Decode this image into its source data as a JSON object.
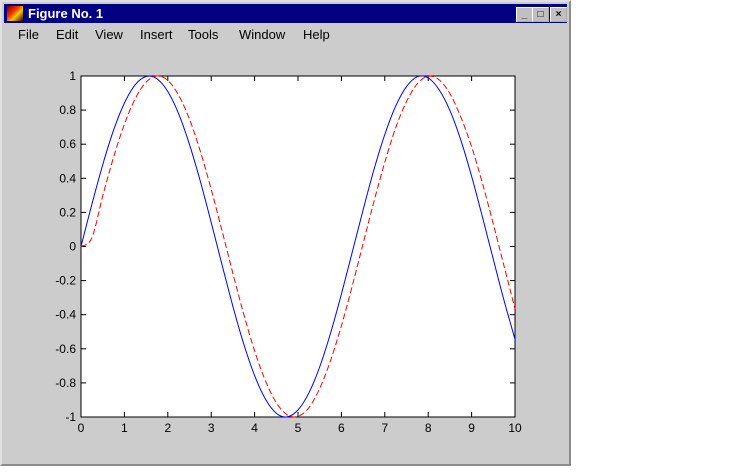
{
  "window": {
    "title": "Figure No. 1",
    "controls": [
      "_",
      "□",
      "×"
    ]
  },
  "menu": [
    "File",
    "Edit",
    "View",
    "Insert",
    "Tools",
    "Window",
    "Help"
  ],
  "chart_data": {
    "type": "line",
    "xlim": [
      0,
      10
    ],
    "ylim": [
      -1,
      1
    ],
    "grid": false,
    "xticks": [
      "0",
      "1",
      "2",
      "3",
      "4",
      "5",
      "6",
      "7",
      "8",
      "9",
      "10"
    ],
    "yticks": [
      "1",
      "0.8",
      "0.6",
      "0.4",
      "0.2",
      "0",
      "-0.2",
      "-0.4",
      "-0.6",
      "-0.8",
      "-1"
    ],
    "x": [
      0,
      0.25,
      0.5,
      0.75,
      1,
      1.25,
      1.5,
      1.75,
      2,
      2.25,
      2.5,
      2.75,
      3,
      3.25,
      3.5,
      3.75,
      4,
      4.25,
      4.5,
      4.75,
      5,
      5.25,
      5.5,
      5.75,
      6,
      6.25,
      6.5,
      6.75,
      7,
      7.25,
      7.5,
      7.75,
      8,
      8.25,
      8.5,
      8.75,
      9,
      9.25,
      9.5,
      9.75,
      10
    ],
    "series": [
      {
        "color": "#0000ff",
        "style": "solid",
        "values": [
          0,
          0.247,
          0.479,
          0.682,
          0.841,
          0.949,
          0.997,
          0.984,
          0.909,
          0.778,
          0.598,
          0.382,
          0.141,
          -0.108,
          -0.351,
          -0.572,
          -0.757,
          -0.895,
          -0.978,
          -0.999,
          -0.959,
          -0.859,
          -0.706,
          -0.508,
          -0.279,
          -0.033,
          0.215,
          0.451,
          0.657,
          0.823,
          0.938,
          0.996,
          0.989,
          0.92,
          0.798,
          0.625,
          0.412,
          0.173,
          -0.075,
          -0.319,
          -0.544
        ]
      },
      {
        "color": "#ff0000",
        "style": "dashed",
        "values": [
          0,
          0.05,
          0.296,
          0.523,
          0.717,
          0.867,
          0.964,
          1.0,
          0.974,
          0.887,
          0.746,
          0.558,
          0.335,
          0.092,
          -0.158,
          -0.397,
          -0.612,
          -0.788,
          -0.916,
          -0.987,
          -0.996,
          -0.946,
          -0.832,
          -0.669,
          -0.465,
          -0.231,
          0.017,
          0.264,
          0.494,
          0.696,
          0.85,
          0.955,
          0.998,
          0.978,
          0.897,
          0.76,
          0.585,
          0.37,
          0.132,
          -0.117,
          -0.366
        ]
      }
    ]
  }
}
